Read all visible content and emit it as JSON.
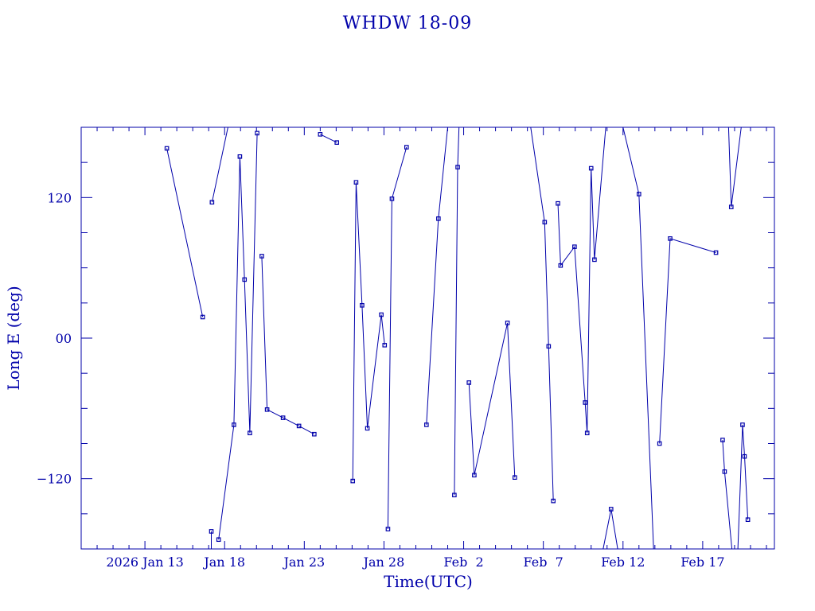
{
  "chart_data": {
    "type": "line",
    "title": "WHDW 18-09",
    "xlabel": "Time(UTC)",
    "ylabel": "Long E (deg)",
    "colors": {
      "plot": "#0000aa",
      "background": "#ffffff"
    },
    "grid": false,
    "legend": "none",
    "xlim": [
      "2026-01-09T00:00:00Z",
      "2026-02-21T12:00:00Z"
    ],
    "ylim": [
      -180,
      180
    ],
    "x_tick_labels": [
      "2026 Jan 13",
      "Jan 18",
      "Jan 23",
      "Jan 28",
      "Feb  2",
      "Feb  7",
      "Feb 12",
      "Feb 17"
    ],
    "x_ticks": [
      "2026-01-13T00:00:00Z",
      "2026-01-18T00:00:00Z",
      "2026-01-23T00:00:00Z",
      "2026-01-28T00:00:00Z",
      "2026-02-02T00:00:00Z",
      "2026-02-07T00:00:00Z",
      "2026-02-12T00:00:00Z",
      "2026-02-17T00:00:00Z"
    ],
    "y_ticks": [
      -120,
      0,
      120
    ],
    "y_tick_labels": [
      "−120",
      "00",
      "120"
    ],
    "segments": [
      [
        {
          "time": "2026-01-14T09:00:00Z",
          "lon": 162
        },
        {
          "time": "2026-01-16T15:00:00Z",
          "lon": 18
        }
      ],
      [
        {
          "time": "2026-01-17T04:00:00Z",
          "lon": -165
        },
        {
          "time": "2026-01-17T04:00:00Z",
          "lon": -180
        }
      ],
      [
        {
          "time": "2026-01-17T05:00:00Z",
          "lon": 116
        },
        {
          "time": "2026-01-18T05:00:00Z",
          "lon": 180
        }
      ],
      [
        {
          "time": "2026-01-17T15:00:00Z",
          "lon": -172
        },
        {
          "time": "2026-01-18T14:00:00Z",
          "lon": -74
        },
        {
          "time": "2026-01-18T23:00:00Z",
          "lon": 155
        },
        {
          "time": "2026-01-19T06:00:00Z",
          "lon": 50
        },
        {
          "time": "2026-01-19T14:00:00Z",
          "lon": -81
        },
        {
          "time": "2026-01-20T01:00:00Z",
          "lon": 175
        }
      ],
      [
        {
          "time": "2026-01-20T08:00:00Z",
          "lon": 70
        },
        {
          "time": "2026-01-20T16:00:00Z",
          "lon": -61
        },
        {
          "time": "2026-01-21T16:00:00Z",
          "lon": -68
        },
        {
          "time": "2026-01-22T16:00:00Z",
          "lon": -75
        },
        {
          "time": "2026-01-23T15:00:00Z",
          "lon": -82
        }
      ],
      [
        {
          "time": "2026-01-24T00:00:00Z",
          "lon": 174
        },
        {
          "time": "2026-01-25T01:00:00Z",
          "lon": 167
        }
      ],
      [
        {
          "time": "2026-01-26T01:00:00Z",
          "lon": -122
        },
        {
          "time": "2026-01-26T06:00:00Z",
          "lon": 133
        },
        {
          "time": "2026-01-26T15:00:00Z",
          "lon": 28
        },
        {
          "time": "2026-01-26T23:00:00Z",
          "lon": -77
        },
        {
          "time": "2026-01-27T20:00:00Z",
          "lon": 20
        },
        {
          "time": "2026-01-28T01:00:00Z",
          "lon": -6
        }
      ],
      [
        {
          "time": "2026-01-28T06:00:00Z",
          "lon": -163
        },
        {
          "time": "2026-01-28T12:00:00Z",
          "lon": 119
        },
        {
          "time": "2026-01-29T10:00:00Z",
          "lon": 163
        }
      ],
      [
        {
          "time": "2026-01-30T16:00:00Z",
          "lon": -74
        },
        {
          "time": "2026-01-31T10:00:00Z",
          "lon": 102
        },
        {
          "time": "2026-02-01T00:00:00Z",
          "lon": 180
        }
      ],
      [
        {
          "time": "2026-02-01T10:00:00Z",
          "lon": -134
        },
        {
          "time": "2026-02-01T15:00:00Z",
          "lon": 146
        },
        {
          "time": "2026-02-01T17:00:00Z",
          "lon": 180
        }
      ],
      [
        {
          "time": "2026-02-02T08:00:00Z",
          "lon": -38
        },
        {
          "time": "2026-02-02T16:00:00Z",
          "lon": -117
        },
        {
          "time": "2026-02-04T18:00:00Z",
          "lon": 13
        },
        {
          "time": "2026-02-05T05:00:00Z",
          "lon": -119
        }
      ],
      [
        {
          "time": "2026-02-06T05:00:00Z",
          "lon": 180
        },
        {
          "time": "2026-02-07T02:00:00Z",
          "lon": 99
        },
        {
          "time": "2026-02-07T08:00:00Z",
          "lon": -7
        },
        {
          "time": "2026-02-07T15:00:00Z",
          "lon": -139
        }
      ],
      [
        {
          "time": "2026-02-07T22:00:00Z",
          "lon": 115
        },
        {
          "time": "2026-02-08T02:00:00Z",
          "lon": 62
        },
        {
          "time": "2026-02-08T23:00:00Z",
          "lon": 78
        },
        {
          "time": "2026-02-09T15:00:00Z",
          "lon": -55
        },
        {
          "time": "2026-02-09T18:00:00Z",
          "lon": -81
        },
        {
          "time": "2026-02-10T00:00:00Z",
          "lon": 145
        },
        {
          "time": "2026-02-10T05:00:00Z",
          "lon": 67
        },
        {
          "time": "2026-02-10T22:00:00Z",
          "lon": 180
        }
      ],
      [
        {
          "time": "2026-02-10T18:00:00Z",
          "lon": -180
        },
        {
          "time": "2026-02-11T06:00:00Z",
          "lon": -146
        },
        {
          "time": "2026-02-11T16:00:00Z",
          "lon": -180
        }
      ],
      [
        {
          "time": "2026-02-12T00:00:00Z",
          "lon": 180
        },
        {
          "time": "2026-02-13T00:00:00Z",
          "lon": 123
        },
        {
          "time": "2026-02-13T22:00:00Z",
          "lon": -180
        }
      ],
      [
        {
          "time": "2026-02-14T07:00:00Z",
          "lon": -90
        },
        {
          "time": "2026-02-14T23:00:00Z",
          "lon": 85
        },
        {
          "time": "2026-02-17T20:00:00Z",
          "lon": 73
        }
      ],
      [
        {
          "time": "2026-02-18T06:00:00Z",
          "lon": -87
        },
        {
          "time": "2026-02-18T09:00:00Z",
          "lon": -114
        },
        {
          "time": "2026-02-18T20:00:00Z",
          "lon": -180
        }
      ],
      [
        {
          "time": "2026-02-18T15:00:00Z",
          "lon": 180
        },
        {
          "time": "2026-02-18T19:00:00Z",
          "lon": 112
        },
        {
          "time": "2026-02-19T10:00:00Z",
          "lon": 180
        }
      ],
      [
        {
          "time": "2026-02-19T05:00:00Z",
          "lon": -180
        },
        {
          "time": "2026-02-19T12:00:00Z",
          "lon": -74
        },
        {
          "time": "2026-02-19T15:00:00Z",
          "lon": -101
        },
        {
          "time": "2026-02-19T20:00:00Z",
          "lon": -155
        }
      ]
    ]
  }
}
